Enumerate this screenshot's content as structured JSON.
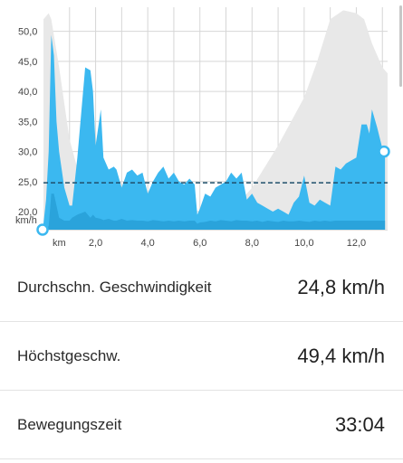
{
  "chart_data": {
    "type": "area",
    "y_unit": "km/h",
    "x_unit": "km",
    "xlim": [
      0,
      13.2
    ],
    "ylim": [
      17,
      54
    ],
    "x_ticks": [
      2.0,
      4.0,
      6.0,
      8.0,
      10.0,
      12.0
    ],
    "x_tick_labels": [
      "2,0",
      "4,0",
      "6,0",
      "8,0",
      "10,0",
      "12,0"
    ],
    "y_ticks": [
      20,
      25,
      30,
      35,
      40,
      45,
      50
    ],
    "y_tick_labels": [
      "20,0",
      "25,0",
      "30,0",
      "35,0",
      "40,0",
      "45,0",
      "50,0"
    ],
    "average_line": 24.8,
    "grid": true,
    "colors": {
      "speed": "#3bb8f0",
      "speed_low": "#2aa3db",
      "elevation": "#e8e8e8",
      "average": "#1f4f6b",
      "grid": "#d6d6d6"
    },
    "series": [
      {
        "type": "speed",
        "x": [
          0,
          0.1,
          0.2,
          0.3,
          0.4,
          0.5,
          0.6,
          0.8,
          1.0,
          1.1,
          1.3,
          1.6,
          1.8,
          1.9,
          2.0,
          2.2,
          2.3,
          2.5,
          2.7,
          2.8,
          3.0,
          3.2,
          3.4,
          3.6,
          3.8,
          4.0,
          4.2,
          4.4,
          4.6,
          4.8,
          5.0,
          5.2,
          5.4,
          5.6,
          5.8,
          5.9,
          6.0,
          6.2,
          6.4,
          6.6,
          6.8,
          7.0,
          7.2,
          7.4,
          7.6,
          7.8,
          8.0,
          8.2,
          8.4,
          8.6,
          8.8,
          9.0,
          9.2,
          9.4,
          9.6,
          9.8,
          10.0,
          10.2,
          10.4,
          10.6,
          10.8,
          11.0,
          11.2,
          11.4,
          11.6,
          11.8,
          12.0,
          12.2,
          12.4,
          12.5,
          12.6,
          12.8,
          13.0,
          13.1
        ],
        "values": [
          18,
          22,
          30,
          49.4,
          46,
          35,
          30,
          24,
          21,
          21,
          29,
          44,
          43.5,
          40,
          31,
          37,
          29,
          27,
          27.5,
          27,
          24,
          26.5,
          27,
          26,
          26.5,
          23,
          25,
          26.5,
          27.5,
          25.5,
          26.5,
          25,
          24.5,
          25.5,
          24.5,
          19.5,
          20.5,
          23,
          22.5,
          24,
          24.5,
          25,
          26.5,
          25.5,
          26.5,
          22,
          23,
          21.5,
          21,
          20.5,
          20,
          20.5,
          20,
          19.5,
          21.5,
          22.5,
          26,
          21.5,
          21,
          22,
          21.5,
          21,
          27.5,
          27,
          28,
          28.5,
          29,
          34.5,
          34.5,
          33,
          37,
          34,
          30.5,
          30
        ],
        "low_values": [
          17.5,
          17.5,
          17.5,
          23,
          23,
          21,
          19,
          18.5,
          18.5,
          19,
          19.5,
          20,
          19,
          19.5,
          19,
          18.8,
          18.6,
          18.8,
          18.5,
          18.5,
          18.8,
          18.5,
          18.6,
          18.5,
          18.5,
          18.4,
          18.6,
          18.5,
          18.4,
          18.5,
          18.4,
          18.5,
          18.4,
          18.5,
          18.5,
          18,
          18.2,
          18.3,
          18.5,
          18.4,
          18.6,
          18.5,
          18.4,
          18.6,
          18.5,
          18.5,
          18.4,
          18.5,
          18.3,
          18.5,
          18.4,
          18.3,
          18.5,
          18.4,
          18.4,
          18.5,
          18.4,
          18.3,
          18.5,
          18.4,
          18.5,
          18.4,
          18.5,
          18.5,
          18.5,
          18.5,
          18.5,
          18.5,
          18.5,
          18.5,
          18.5,
          18.5,
          18.5,
          18.5
        ]
      },
      {
        "type": "elevation",
        "x": [
          0,
          0.2,
          0.3,
          0.6,
          1.0,
          1.5,
          2.0,
          2.5,
          3.0,
          4.0,
          5.0,
          6.0,
          6.5,
          7.0,
          7.5,
          8.0,
          8.5,
          9.0,
          9.5,
          10.0,
          10.5,
          11.0,
          11.5,
          12.0,
          12.3,
          12.6,
          13.0,
          13.2
        ],
        "values": [
          52,
          53,
          52,
          44,
          32,
          24,
          21,
          19.5,
          19,
          18.8,
          18.8,
          19,
          19.3,
          20,
          21.5,
          24,
          27.5,
          31,
          35,
          39,
          45,
          52,
          53.5,
          53,
          52,
          48,
          44,
          43
        ]
      }
    ]
  },
  "stats": [
    {
      "label": "Durchschn. Geschwindigkeit",
      "value": "24,8 km/h"
    },
    {
      "label": "Höchstgeschw.",
      "value": "49,4 km/h"
    },
    {
      "label": "Bewegungszeit",
      "value": "33:04"
    }
  ]
}
